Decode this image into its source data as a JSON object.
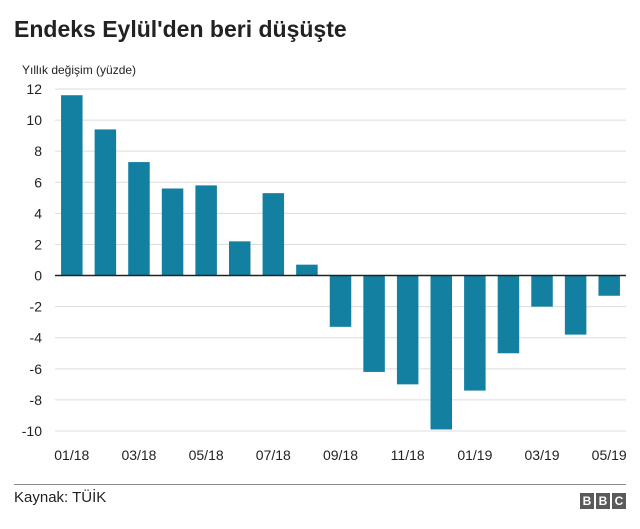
{
  "logo": {
    "letters": [
      "B",
      "B",
      "C"
    ]
  },
  "source": "Kaynak: TÜİK",
  "chart_data": {
    "type": "bar",
    "title": "Endeks Eylül'den beri düşüşte",
    "ylabel": "Yıllık değişim (yüzde)",
    "xlabel": "",
    "ylim": [
      -10,
      12
    ],
    "yticks": [
      12,
      10,
      8,
      6,
      4,
      2,
      0,
      -2,
      -4,
      -6,
      -8,
      -10
    ],
    "grid": true,
    "categories": [
      "01/18",
      "02/18",
      "03/18",
      "04/18",
      "05/18",
      "06/18",
      "07/18",
      "08/18",
      "09/18",
      "10/18",
      "11/18",
      "12/18",
      "01/19",
      "02/19",
      "03/19",
      "04/19",
      "05/19"
    ],
    "xtick_labels": [
      "01/18",
      "",
      "03/18",
      "",
      "05/18",
      "",
      "07/18",
      "",
      "09/18",
      "",
      "11/18",
      "",
      "01/19",
      "",
      "03/19",
      "",
      "05/19"
    ],
    "values": [
      11.6,
      9.4,
      7.3,
      5.6,
      5.8,
      2.2,
      5.3,
      0.7,
      -3.3,
      -6.2,
      -7.0,
      -9.9,
      -7.4,
      -5.0,
      -2.0,
      -3.8,
      -1.3
    ],
    "bar_color": "#1380a1"
  }
}
